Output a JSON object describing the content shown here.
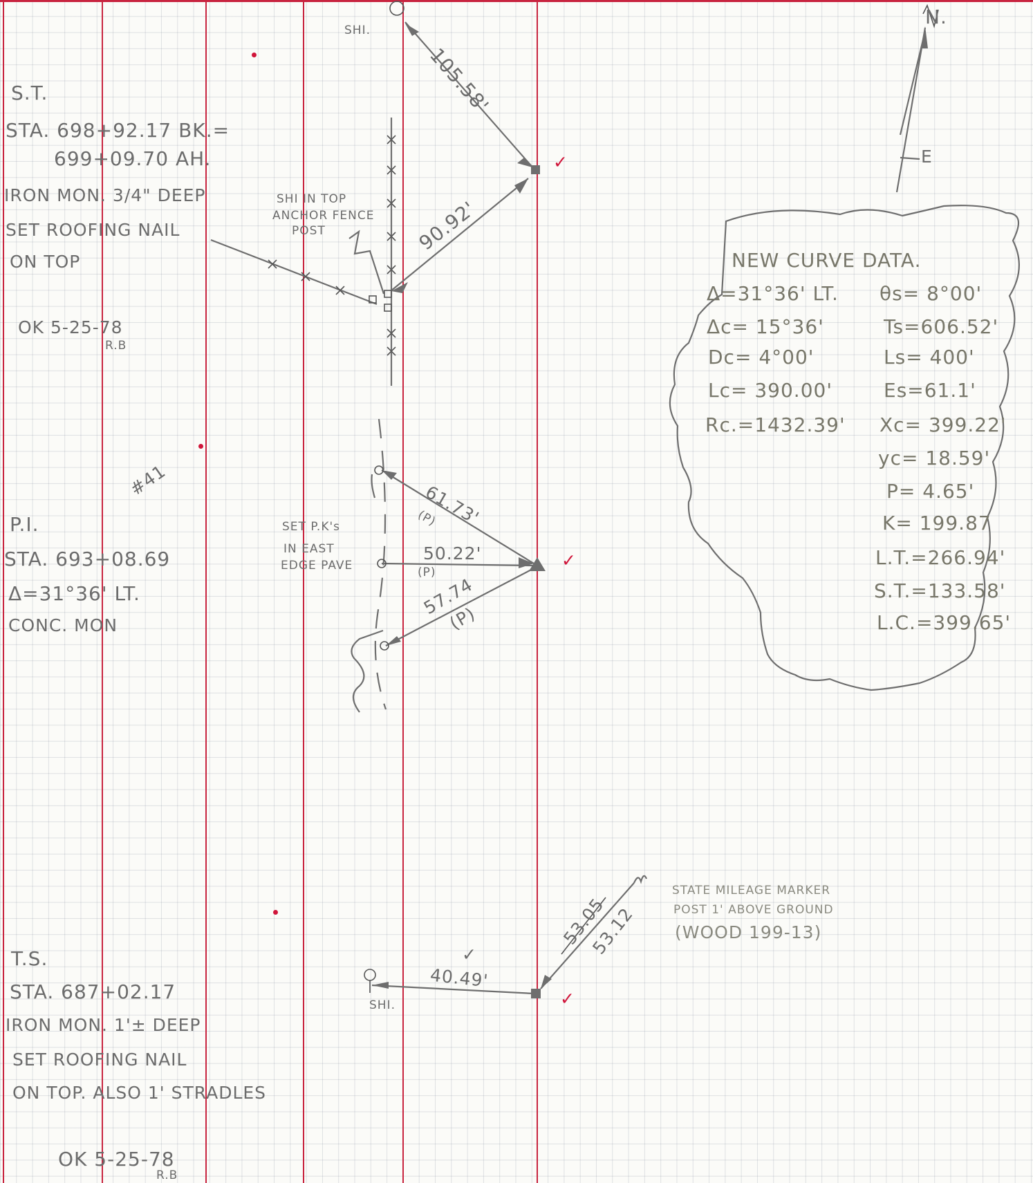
{
  "notes": {
    "st_title": "S.T.",
    "st_sta1": "STA. 698+92.17 BK.=",
    "st_sta2": "699+09.70 AH.",
    "st_iron": "IRON MON. 3/4\" DEEP",
    "st_roofing": "SET ROOFING NAIL",
    "st_ontop": "ON TOP",
    "st_ok": "OK 5-25-78",
    "st_ok_initials": "R.B",
    "mark41": "#41",
    "pi_title": "P.I.",
    "pi_sta": "STA. 693+08.69",
    "pi_delta": "Δ=31°36' LT.",
    "pi_conc": "CONC. MON",
    "ts_title": "T.S.",
    "ts_sta": "STA. 687+02.17",
    "ts_iron": "IRON MON. 1'± DEEP",
    "ts_roofing": "SET ROOFING NAIL",
    "ts_ontop": "ON TOP. ALSO 1' STRADLES",
    "ts_ok": "OK 5-25-78",
    "ts_ok_initials": "R.B"
  },
  "sketch": {
    "shi_top": "SHI.",
    "dist_105": "105.58'",
    "dist_90": "90.92'",
    "shi_anchor_1": "SHI IN TOP",
    "shi_anchor_2": "ANCHOR FENCE",
    "shi_anchor_3": "POST",
    "dist_61": "61.73'",
    "p1": "(P)",
    "dist_50": "50.22'",
    "p2": "(P)",
    "dist_57": "57.74",
    "p3": "(P)",
    "setpk_1": "SET P.K's",
    "setpk_2": "IN EAST",
    "setpk_3": "EDGE PAVE",
    "dist_40": "40.49'",
    "shi_bottom": "SHI.",
    "dist_53_struck": "53.05",
    "dist_53": "53.12",
    "marker_1": "STATE MILEAGE MARKER",
    "marker_2": "POST 1' ABOVE GROUND",
    "marker_3": "(WOOD 199-13)",
    "north": "N.",
    "east": "E",
    "check": "✓"
  },
  "curve_data": {
    "title": "NEW CURVE DATA.",
    "left": [
      "Δ=31°36' LT.",
      "Δc= 15°36'",
      "Dc= 4°00'",
      "Lc= 390.00'",
      "Rc.=1432.39'"
    ],
    "right": [
      "θs= 8°00'",
      "Ts=606.52'",
      "Ls= 400'",
      "Es=61.1'",
      "Xc= 399.22'",
      "yc= 18.59'",
      "P= 4.65'",
      "K= 199.87",
      "L.T.=266.94'",
      "S.T.=133.58'",
      "L.C.=399.65'"
    ]
  },
  "colors": {
    "red_rule": "#c8243f",
    "pencil": "#6c6c6c",
    "check": "#d0153a"
  }
}
